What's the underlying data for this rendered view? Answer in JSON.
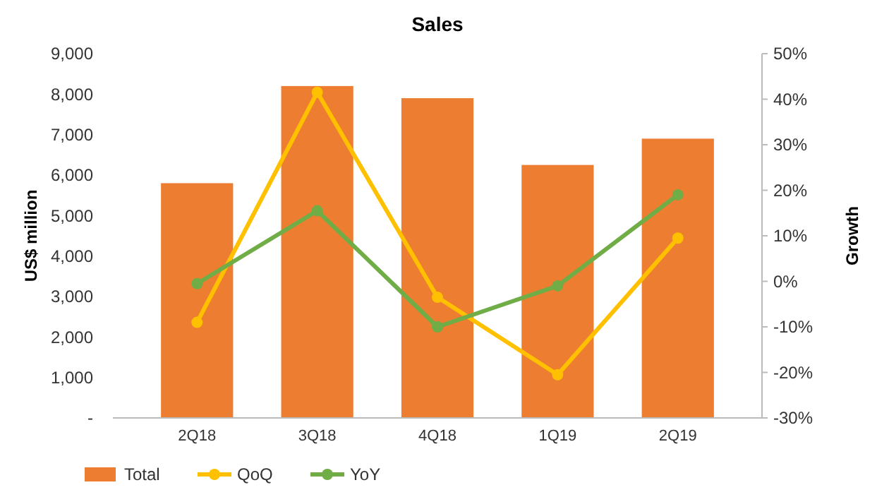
{
  "chart_data": {
    "type": "bar",
    "title": "Sales",
    "ylabel": "US$ million",
    "y2label": "Growth",
    "categories": [
      "2Q18",
      "3Q18",
      "4Q18",
      "1Q19",
      "2Q19"
    ],
    "series": [
      {
        "name": "Total",
        "color": "#ed7d31",
        "values": [
          5800,
          8200,
          7900,
          6250,
          6900
        ]
      },
      {
        "name": "QoQ",
        "type": "line",
        "axis": "y2",
        "color": "#ffc000",
        "values": [
          -9,
          41.5,
          -3.5,
          -20.5,
          9.5
        ]
      },
      {
        "name": "YoY",
        "type": "line",
        "axis": "y2",
        "color": "#70ad47",
        "values": [
          -0.5,
          15.5,
          -10,
          -1,
          19
        ]
      }
    ],
    "ylim": [
      0,
      9000
    ],
    "yticks": [
      {
        "value": 0,
        "label": "-"
      },
      {
        "value": 1000,
        "label": "1,000"
      },
      {
        "value": 2000,
        "label": "2,000"
      },
      {
        "value": 3000,
        "label": "3,000"
      },
      {
        "value": 4000,
        "label": "4,000"
      },
      {
        "value": 5000,
        "label": "5,000"
      },
      {
        "value": 6000,
        "label": "6,000"
      },
      {
        "value": 7000,
        "label": "7,000"
      },
      {
        "value": 8000,
        "label": "8,000"
      },
      {
        "value": 9000,
        "label": "9,000"
      }
    ],
    "y2lim": [
      -30,
      50
    ],
    "y2ticks": [
      {
        "value": -30,
        "label": "-30%"
      },
      {
        "value": -20,
        "label": "-20%"
      },
      {
        "value": -10,
        "label": "-10%"
      },
      {
        "value": 0,
        "label": "0%"
      },
      {
        "value": 10,
        "label": "10%"
      },
      {
        "value": 20,
        "label": "20%"
      },
      {
        "value": 30,
        "label": "30%"
      },
      {
        "value": 40,
        "label": "40%"
      },
      {
        "value": 50,
        "label": "50%"
      }
    ],
    "grid": false,
    "legend": "bottom",
    "marker": "circle",
    "line_style": "solid"
  }
}
